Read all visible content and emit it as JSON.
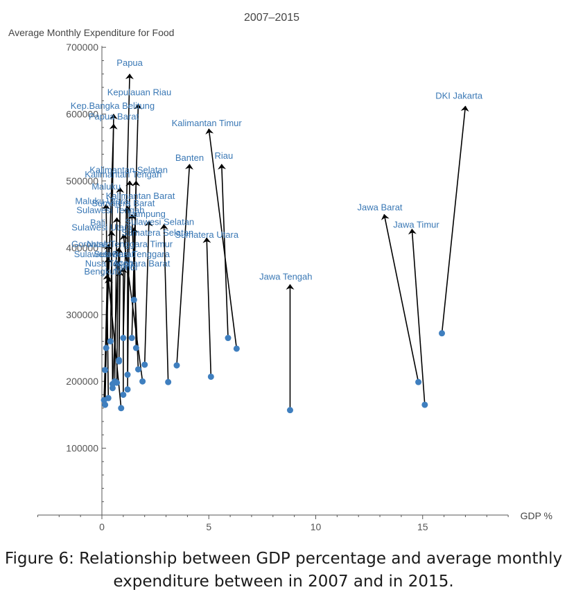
{
  "caption": {
    "line1": "Figure 6: Relationship between GDP percentage and average monthly",
    "line2": "expenditure between in 2007 and in 2015."
  },
  "colors": {
    "point": "#3f7fbf",
    "arrow": "#000000",
    "label": "#3a78b5",
    "axis": "#555555"
  },
  "chart_data": {
    "type": "scatter",
    "title": "2007–2015",
    "xlabel": "GDP %",
    "ylabel": "Average Monthly Expenditure for Food",
    "xlim": [
      -3,
      19
    ],
    "ylim": [
      0,
      700000
    ],
    "xticks": [
      0,
      5,
      10,
      15
    ],
    "xtick_labels": [
      "0",
      "5",
      "10",
      "15"
    ],
    "yticks": [
      100000,
      200000,
      300000,
      400000,
      500000,
      600000,
      700000
    ],
    "ytick_labels": [
      "100000",
      "200000",
      "300000",
      "400000",
      "500000",
      "600000",
      "700000"
    ],
    "grid": false,
    "note": "Each arrow runs from the 2007 point (dot) to the 2015 point (arrow head).",
    "series": [
      {
        "name": "Papua",
        "start": [
          1.0,
          265000
        ],
        "end": [
          1.3,
          660000
        ]
      },
      {
        "name": "Kepulauan Riau",
        "start": [
          1.4,
          265000
        ],
        "end": [
          1.7,
          615000
        ]
      },
      {
        "name": "Kep.Bangka Belitung",
        "start": [
          0.4,
          260000
        ],
        "end": [
          0.55,
          600000
        ]
      },
      {
        "name": "Papua Barat",
        "start": [
          0.2,
          250000
        ],
        "end": [
          0.55,
          585000
        ]
      },
      {
        "name": "DKI Jakarta",
        "start": [
          15.9,
          272000
        ],
        "end": [
          17.0,
          612000
        ]
      },
      {
        "name": "Kalimantan Timur",
        "start": [
          6.3,
          249000
        ],
        "end": [
          5.0,
          578000
        ]
      },
      {
        "name": "Banten",
        "start": [
          3.5,
          224000
        ],
        "end": [
          4.1,
          525000
        ]
      },
      {
        "name": "Riau",
        "start": [
          5.9,
          265000
        ],
        "end": [
          5.6,
          525000
        ]
      },
      {
        "name": "Kalimantan Selatan",
        "start": [
          1.2,
          188000
        ],
        "end": [
          1.3,
          500000
        ]
      },
      {
        "name": "Kalimantan Tengah",
        "start": [
          1.5,
          322000
        ],
        "end": [
          1.6,
          500000
        ]
      },
      {
        "name": "Maluku",
        "start": [
          0.8,
          230000
        ],
        "end": [
          0.85,
          490000
        ]
      },
      {
        "name": "Kalimantan Barat",
        "start": [
          1.2,
          210000
        ],
        "end": [
          1.2,
          462000
        ]
      },
      {
        "name": "Maluku Utara",
        "start": [
          0.3,
          175000
        ],
        "end": [
          0.2,
          465000
        ]
      },
      {
        "name": "Sumatera Barat",
        "start": [
          1.7,
          218000
        ],
        "end": [
          1.4,
          450000
        ]
      },
      {
        "name": "Sulawesi Tengah",
        "start": [
          0.6,
          200000
        ],
        "end": [
          0.7,
          445000
        ]
      },
      {
        "name": "Lampung",
        "start": [
          2.0,
          225000
        ],
        "end": [
          2.2,
          440000
        ]
      },
      {
        "name": "Bali",
        "start": [
          1.6,
          250000
        ],
        "end": [
          1.5,
          430000
        ]
      },
      {
        "name": "Sulawesi Selatan",
        "start": [
          3.1,
          199000
        ],
        "end": [
          2.9,
          435000
        ]
      },
      {
        "name": "Sulawesi Utara",
        "start": [
          0.5,
          196000
        ],
        "end": [
          0.45,
          425000
        ]
      },
      {
        "name": "Sumatera Selatan",
        "start": [
          1.9,
          200000
        ],
        "end": [
          1.0,
          420000
        ]
      },
      {
        "name": "Sumatera Utara",
        "start": [
          5.1,
          207000
        ],
        "end": [
          4.9,
          415000
        ]
      },
      {
        "name": "Jawa Barat",
        "start": [
          14.8,
          199000
        ],
        "end": [
          13.2,
          450000
        ]
      },
      {
        "name": "Jawa Timur",
        "start": [
          15.1,
          165000
        ],
        "end": [
          14.5,
          428000
        ]
      },
      {
        "name": "Jawa Tengah",
        "start": [
          8.8,
          157000
        ],
        "end": [
          8.8,
          345000
        ]
      },
      {
        "name": "Gorontalo",
        "start": [
          0.15,
          165000
        ],
        "end": [
          0.3,
          405000
        ]
      },
      {
        "name": "Nusa Tenggara Timur",
        "start": [
          0.5,
          190000
        ],
        "end": [
          0.8,
          400000
        ]
      },
      {
        "name": "Sulawesi Barat",
        "start": [
          0.1,
          172000
        ],
        "end": [
          0.3,
          385000
        ]
      },
      {
        "name": "Sulawesi Tenggara",
        "start": [
          0.7,
          198000
        ],
        "end": [
          0.75,
          380000
        ]
      },
      {
        "name": "Nusa Tenggara Barat",
        "start": [
          1.0,
          180000
        ],
        "end": [
          1.0,
          370000
        ]
      },
      {
        "name": "Jambi",
        "start": [
          0.8,
          232000
        ],
        "end": [
          0.85,
          365000
        ]
      },
      {
        "name": "Bengkulu",
        "start": [
          0.15,
          217000
        ],
        "end": [
          0.25,
          360000
        ]
      },
      {
        "name": "Aceh",
        "start": [
          0.9,
          160000
        ],
        "end": [
          0.3,
          355000
        ]
      }
    ],
    "visible_labels": [
      {
        "text": "Papua",
        "at": [
          1.3,
          672000
        ]
      },
      {
        "text": "Kepulauan Riau",
        "at": [
          1.75,
          628000
        ]
      },
      {
        "text": "Kep.Bangka Belitung",
        "at": [
          0.5,
          608000
        ]
      },
      {
        "text": "Papua Barat",
        "at": [
          0.55,
          592000
        ]
      },
      {
        "text": "DKI Jakarta",
        "at": [
          16.7,
          623000
        ]
      },
      {
        "text": "Kalimantan Timur",
        "at": [
          4.9,
          582000
        ]
      },
      {
        "text": "Banten",
        "at": [
          4.1,
          530000
        ]
      },
      {
        "text": "Riau",
        "at": [
          5.7,
          533000
        ]
      },
      {
        "text": "Kalimantan Selatan",
        "at": [
          1.25,
          512000
        ]
      },
      {
        "text": "Kalimantan Tengah",
        "at": [
          1.0,
          505000
        ]
      },
      {
        "text": "Maluku",
        "at": [
          0.2,
          487000
        ]
      },
      {
        "text": "Kalimantan Barat",
        "at": [
          1.8,
          473000
        ]
      },
      {
        "text": "Maluku Utara",
        "at": [
          0.0,
          465000
        ]
      },
      {
        "text": "Sumatera Barat",
        "at": [
          1.0,
          462000
        ]
      },
      {
        "text": "Sulawesi Tengah",
        "at": [
          0.4,
          452000
        ]
      },
      {
        "text": "Lampung",
        "at": [
          2.1,
          446000
        ]
      },
      {
        "text": "Bali",
        "at": [
          -0.2,
          433000
        ]
      },
      {
        "text": "Sulawesi Selatan",
        "at": [
          2.7,
          434000
        ]
      },
      {
        "text": "Sulawesi Utara",
        "at": [
          0.0,
          426000
        ]
      },
      {
        "text": "Sumatera Selatan",
        "at": [
          2.6,
          418000
        ]
      },
      {
        "text": "Sumatera Utara",
        "at": [
          4.9,
          415000
        ]
      },
      {
        "text": "Jawa Barat",
        "at": [
          13.0,
          456000
        ]
      },
      {
        "text": "Jawa Timur",
        "at": [
          14.7,
          430000
        ]
      },
      {
        "text": "Jawa Tengah",
        "at": [
          8.6,
          352000
        ]
      },
      {
        "text": "Gorontalo",
        "at": [
          -0.5,
          401000
        ]
      },
      {
        "text": "Nusa Tenggara Timur",
        "at": [
          1.3,
          401000
        ]
      },
      {
        "text": "Sulawesi Barat",
        "at": [
          0.1,
          386000
        ]
      },
      {
        "text": "Sulawesi Tenggara",
        "at": [
          1.4,
          386000
        ]
      },
      {
        "text": "Nusa Tenggara Barat",
        "at": [
          1.2,
          372000
        ]
      },
      {
        "text": "Jambi",
        "at": [
          1.1,
          366000
        ]
      },
      {
        "text": "Bengkulu",
        "at": [
          0.05,
          360000
        ]
      },
      {
        "text": "Aceh",
        "at": [
          1.0,
          373000
        ]
      }
    ]
  }
}
